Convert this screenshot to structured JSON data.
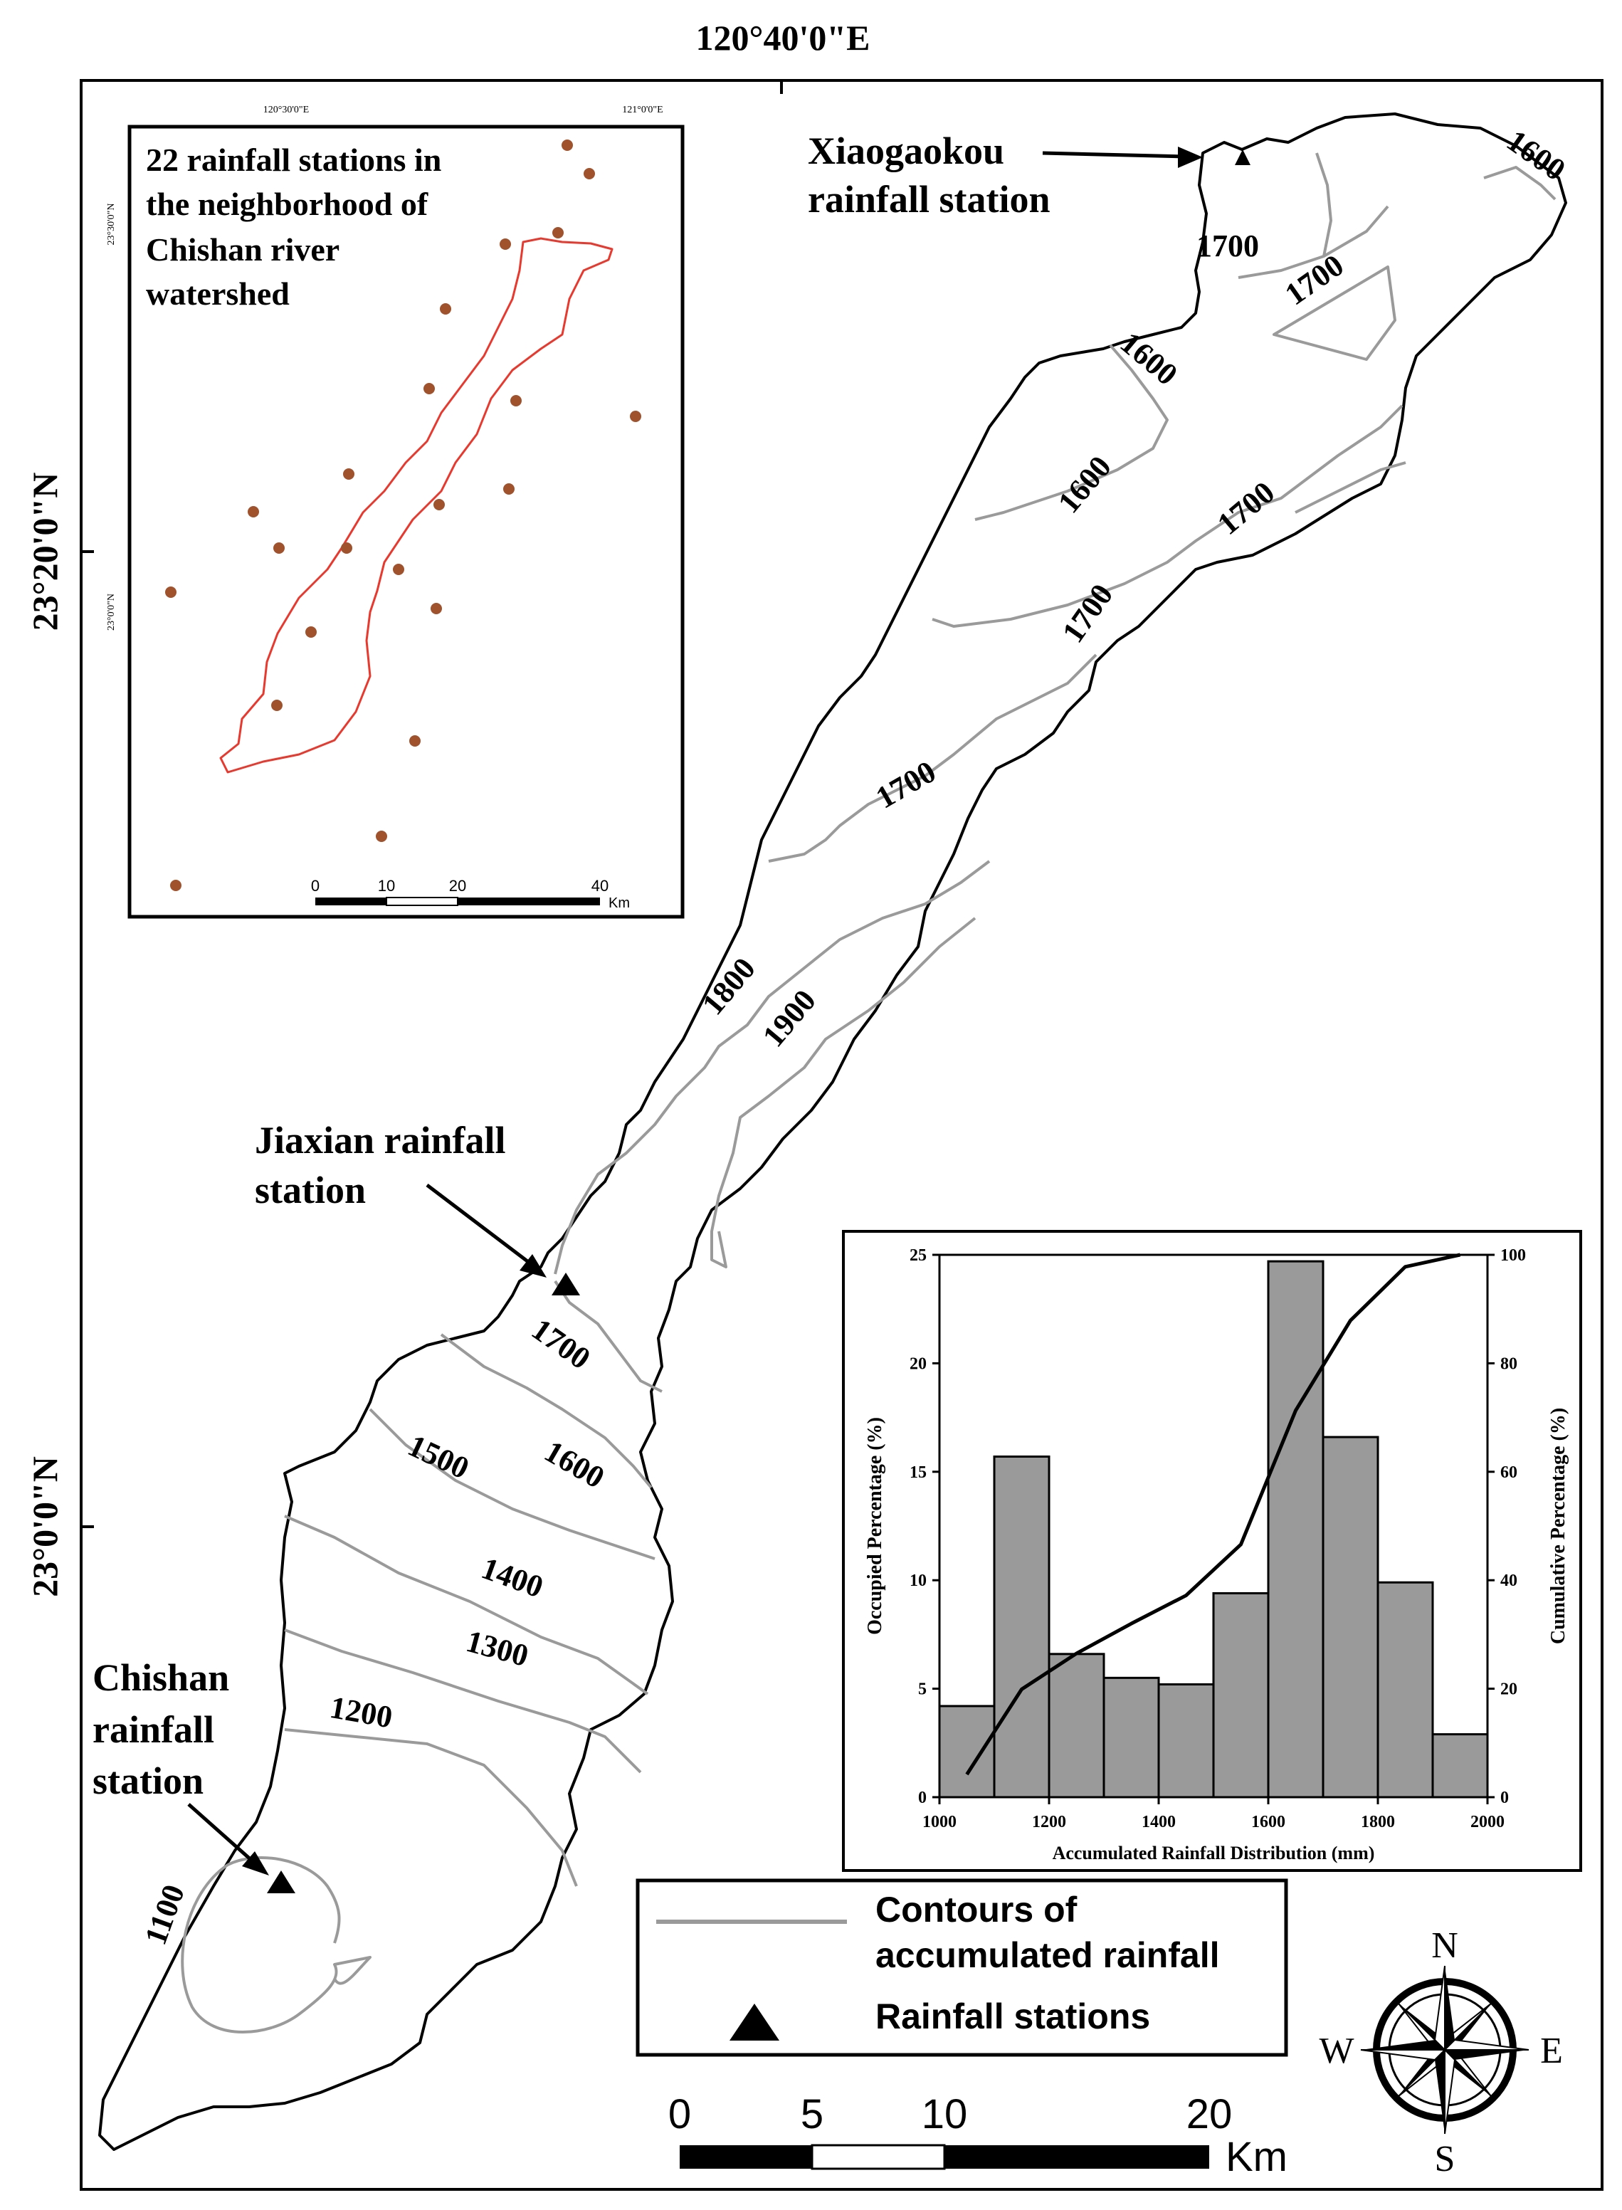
{
  "graticule": {
    "top_longitude": "120°40'0\"E",
    "lat_upper": "23°20'0\"N",
    "lat_lower": "23°0'0\"N"
  },
  "inset_map": {
    "title_lines": [
      "22 rainfall stations in",
      "the neighborhood of",
      "Chishan river",
      "watershed"
    ],
    "lon_left": "120°30'0\"E",
    "lon_right": "121°0'0\"E",
    "lat_upper": "23°30'0\"N",
    "lat_lower": "23°0'0\"N",
    "scale_ticks": [
      "0",
      "10",
      "20",
      "40"
    ],
    "scale_unit": "Km",
    "station_color": "#a0522d",
    "watershed_color": "#e8392f"
  },
  "stations": {
    "xiaogaokou": [
      "Xiaogaokou",
      "rainfall station"
    ],
    "jiaxian": [
      "Jiaxian rainfall",
      "station"
    ],
    "chishan": [
      "Chishan",
      "rainfall",
      "station"
    ]
  },
  "contour_labels": [
    "1600",
    "1700",
    "1700",
    "1600",
    "1600",
    "1700",
    "1700",
    "1700",
    "1800",
    "1900",
    "1700",
    "1500",
    "1600",
    "1400",
    "1300",
    "1200",
    "1100"
  ],
  "chart_data": {
    "type": "bar",
    "xlabel": "Accumulated Rainfall Distribution (mm)",
    "ylabel": "Occupied Percentage (%)",
    "y2label": "Cumulative Percentage (%)",
    "xlim": [
      1000,
      2000
    ],
    "ylim": [
      0,
      25
    ],
    "y2lim": [
      0,
      100
    ],
    "x_ticks": [
      "1000",
      "1200",
      "1400",
      "1600",
      "1800",
      "2000"
    ],
    "y_ticks": [
      "0",
      "5",
      "10",
      "15",
      "20",
      "25"
    ],
    "y2_ticks": [
      "0",
      "20",
      "40",
      "60",
      "80",
      "100"
    ],
    "bins": [
      [
        1000,
        1100
      ],
      [
        1100,
        1200
      ],
      [
        1200,
        1300
      ],
      [
        1300,
        1400
      ],
      [
        1400,
        1500
      ],
      [
        1500,
        1600
      ],
      [
        1600,
        1700
      ],
      [
        1700,
        1800
      ],
      [
        1800,
        1900
      ],
      [
        1900,
        2000
      ]
    ],
    "values": [
      4.2,
      15.7,
      6.6,
      5.5,
      5.2,
      9.4,
      24.7,
      16.6,
      9.9,
      2.9
    ],
    "cumulative": {
      "x": [
        1050,
        1150,
        1250,
        1350,
        1450,
        1550,
        1650,
        1750,
        1850,
        1950
      ],
      "y": [
        4.2,
        19.9,
        26.5,
        32.0,
        37.2,
        46.6,
        71.3,
        87.9,
        97.8,
        100.0
      ]
    },
    "bar_color": "#9a9a9a",
    "line_color": "#000000"
  },
  "legend": {
    "contour_label_1": "Contours of",
    "contour_label_2": "accumulated rainfall",
    "station_label": "Rainfall stations",
    "contour_color": "#9a9a9a"
  },
  "scale_bar": {
    "ticks": [
      "0",
      "5",
      "10",
      "20"
    ],
    "unit": "Km"
  },
  "compass": {
    "north": "N",
    "south": "S",
    "east": "E",
    "west": "W"
  }
}
